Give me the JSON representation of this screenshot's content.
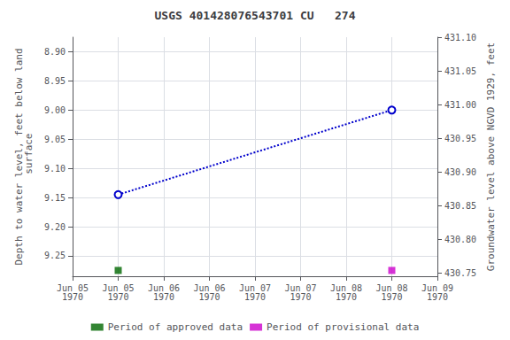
{
  "chart_data": {
    "type": "line",
    "title": "USGS 401428076543701 CU   274",
    "ylabel": "Depth to water level, feet below land\n surface",
    "y2label": "Groundwater level above NGVD 1929, feet",
    "categories": [
      "Jun 05\n1970",
      "Jun 05\n1970",
      "Jun 06\n1970",
      "Jun 06\n1970",
      "Jun 07\n1970",
      "Jun 07\n1970",
      "Jun 08\n1970",
      "Jun 08\n1970",
      "Jun 09\n1970"
    ],
    "series": [
      {
        "type": "line",
        "color": "#0000cc",
        "line_style": "dotted",
        "marker": "circle",
        "values": [
          null,
          9.145,
          null,
          null,
          null,
          null,
          null,
          9.0,
          null
        ]
      },
      {
        "name": "Period of approved data",
        "type": "scatter",
        "color": "#006600",
        "marker": "square",
        "values": [
          null,
          9.275,
          null,
          null,
          null,
          null,
          null,
          null,
          null
        ]
      },
      {
        "name": "Period of provisional data",
        "type": "scatter",
        "color": "#cc00cc",
        "marker": "square",
        "values": [
          null,
          null,
          null,
          null,
          null,
          null,
          null,
          9.275,
          null
        ]
      }
    ],
    "ylim": [
      9.285,
      8.875
    ],
    "yticks": [
      {
        "value": 8.9,
        "label": "8.90"
      },
      {
        "value": 8.95,
        "label": "8.95"
      },
      {
        "value": 9.0,
        "label": "9.00"
      },
      {
        "value": 9.05,
        "label": "9.05"
      },
      {
        "value": 9.1,
        "label": "9.10"
      },
      {
        "value": 9.15,
        "label": "9.15"
      },
      {
        "value": 9.2,
        "label": "9.20"
      },
      {
        "value": 9.25,
        "label": "9.25"
      }
    ],
    "y2lim": [
      430.745,
      431.1
    ],
    "y2ticks": [
      {
        "value": 431.1,
        "label": "431.10"
      },
      {
        "value": 431.05,
        "label": "431.05"
      },
      {
        "value": 431.0,
        "label": "431.00"
      },
      {
        "value": 430.95,
        "label": "430.95"
      },
      {
        "value": 430.9,
        "label": "430.90"
      },
      {
        "value": 430.85,
        "label": "430.85"
      },
      {
        "value": 430.8,
        "label": "430.80"
      },
      {
        "value": 430.75,
        "label": "430.75"
      }
    ],
    "grid": true,
    "legend": "bottom"
  }
}
